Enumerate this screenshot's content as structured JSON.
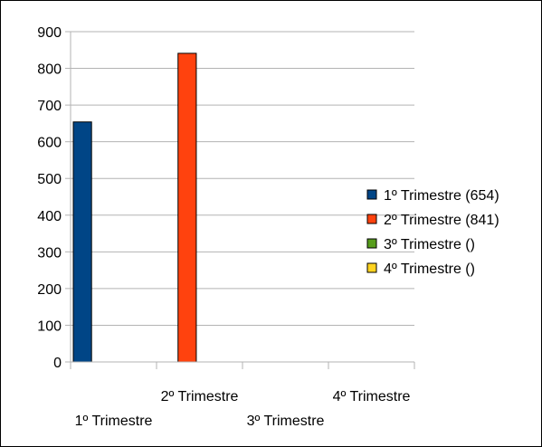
{
  "chart_data": {
    "type": "bar",
    "title": "",
    "xlabel": "",
    "ylabel": "",
    "ylim": [
      0,
      900
    ],
    "yticks": [
      0,
      100,
      200,
      300,
      400,
      500,
      600,
      700,
      800,
      900
    ],
    "categories": [
      "1º Trimestre",
      "2º Trimestre",
      "3º Trimestre",
      "4º Trimestre"
    ],
    "grid": "horizontal",
    "legend_position": "right",
    "series": [
      {
        "name": "1º Trimestre (654)",
        "category_index": 0,
        "value": 654,
        "color": "#004586"
      },
      {
        "name": "2º Trimestre (841)",
        "category_index": 1,
        "value": 841,
        "color": "#ff420e"
      },
      {
        "name": "3º Trimestre ()",
        "category_index": 2,
        "value": null,
        "color": "#579d1c"
      },
      {
        "name": "4º Trimestre ()",
        "category_index": 3,
        "value": null,
        "color": "#ffd320"
      }
    ]
  }
}
